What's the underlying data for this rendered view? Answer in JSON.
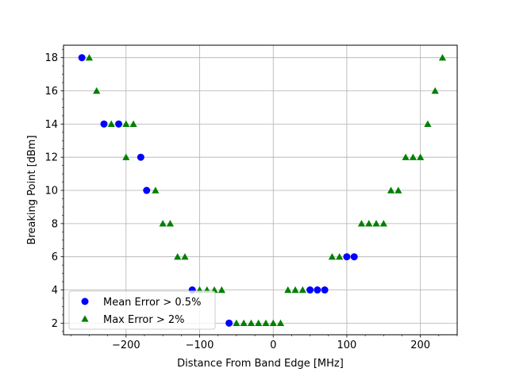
{
  "chart_data": {
    "type": "scatter",
    "title": "",
    "xlabel": "Distance From Band Edge [MHz]",
    "ylabel": "Breaking Point [dBm]",
    "xlim": [
      -285,
      250
    ],
    "ylim": [
      1.3,
      18.75
    ],
    "xticks": [
      -200,
      -100,
      0,
      100,
      200
    ],
    "xtick_labels": [
      "−200",
      "−100",
      "0",
      "100",
      "200"
    ],
    "yticks": [
      2,
      4,
      6,
      8,
      10,
      12,
      14,
      16,
      18
    ],
    "ytick_labels": [
      "2",
      "4",
      "6",
      "8",
      "10",
      "12",
      "14",
      "16",
      "18"
    ],
    "grid": true,
    "legend_position": "lower-left",
    "series": [
      {
        "name": "Mean Error > 0.5%",
        "marker": "circle",
        "color": "#0000ff",
        "points": [
          [
            -260,
            18
          ],
          [
            -230,
            14
          ],
          [
            -210,
            14
          ],
          [
            -180,
            12
          ],
          [
            -172,
            10
          ],
          [
            -110,
            4
          ],
          [
            -60,
            2
          ],
          [
            50,
            4
          ],
          [
            60,
            4
          ],
          [
            70,
            4
          ],
          [
            100,
            6
          ],
          [
            110,
            6
          ]
        ]
      },
      {
        "name": "Max Error > 2%",
        "marker": "triangle",
        "color": "#008000",
        "points": [
          [
            -250,
            18
          ],
          [
            -240,
            16
          ],
          [
            -220,
            14
          ],
          [
            -200,
            14
          ],
          [
            -190,
            14
          ],
          [
            -200,
            12
          ],
          [
            -160,
            10
          ],
          [
            -150,
            8
          ],
          [
            -140,
            8
          ],
          [
            -130,
            6
          ],
          [
            -120,
            6
          ],
          [
            -100,
            4
          ],
          [
            -90,
            4
          ],
          [
            -80,
            4
          ],
          [
            -70,
            4
          ],
          [
            -50,
            2
          ],
          [
            -40,
            2
          ],
          [
            -30,
            2
          ],
          [
            -20,
            2
          ],
          [
            -10,
            2
          ],
          [
            0,
            2
          ],
          [
            10,
            2
          ],
          [
            20,
            4
          ],
          [
            30,
            4
          ],
          [
            40,
            4
          ],
          [
            80,
            6
          ],
          [
            90,
            6
          ],
          [
            120,
            8
          ],
          [
            130,
            8
          ],
          [
            140,
            8
          ],
          [
            150,
            8
          ],
          [
            160,
            10
          ],
          [
            170,
            10
          ],
          [
            180,
            12
          ],
          [
            190,
            12
          ],
          [
            200,
            12
          ],
          [
            210,
            14
          ],
          [
            220,
            16
          ],
          [
            230,
            18
          ]
        ]
      }
    ]
  }
}
